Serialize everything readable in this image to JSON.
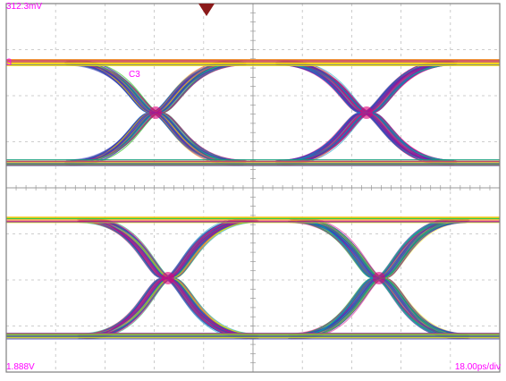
{
  "scope": {
    "top_left_readout": "312.3mV",
    "bottom_left_readout": "1.888V",
    "bottom_right_readout": "18.00ps/div",
    "channel_label": "C3",
    "channel_marker": "3",
    "trigger_marker_icon": "down-triangle-marker"
  },
  "colors": {
    "grid": "#bfbfbf",
    "frame": "#7f7f7f",
    "readout_text": "#ff00ff",
    "trigger_marker": "#8b1a1a",
    "trace_blue": "#3b3bbf",
    "trace_magenta": "#e0007a",
    "trace_yellow": "#ffe600",
    "trace_green": "#00c060",
    "trace_cyan": "#00a0c0"
  }
}
